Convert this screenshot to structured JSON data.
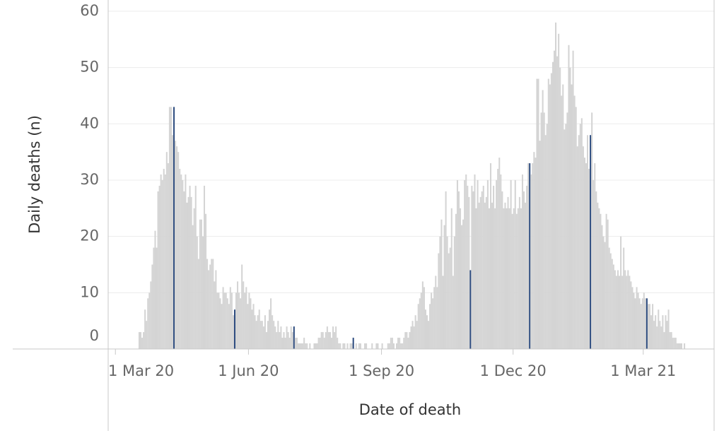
{
  "chart_data": {
    "type": "bar",
    "x_label": "Date of death",
    "y_label": "Daily deaths (n)",
    "color": "#d4d4d4",
    "highlight_color": "#2b4a7e",
    "grid": true,
    "ylim": [
      0,
      62
    ],
    "yticks": [
      0,
      10,
      20,
      30,
      40,
      50,
      60
    ],
    "xlim": [
      "2020-02-25",
      "2021-04-19"
    ],
    "xticks": [
      {
        "value": "2020-03-01",
        "label": "1 Mar 20"
      },
      {
        "value": "2020-06-01",
        "label": "1 Jun 20"
      },
      {
        "value": "2020-09-01",
        "label": "1 Sep 20"
      },
      {
        "value": "2020-12-01",
        "label": "1 Dec 20"
      },
      {
        "value": "2021-03-01",
        "label": "1 Mar 21"
      }
    ],
    "highlight_dates": [
      "2020-04-10",
      "2020-05-22",
      "2020-07-02",
      "2020-08-12",
      "2020-11-01",
      "2020-12-12",
      "2021-01-23",
      "2021-03-03"
    ],
    "x": [
      "2020-03-17",
      "2020-03-18",
      "2020-03-19",
      "2020-03-20",
      "2020-03-21",
      "2020-03-22",
      "2020-03-23",
      "2020-03-24",
      "2020-03-25",
      "2020-03-26",
      "2020-03-27",
      "2020-03-28",
      "2020-03-29",
      "2020-03-30",
      "2020-03-31",
      "2020-04-01",
      "2020-04-02",
      "2020-04-03",
      "2020-04-04",
      "2020-04-05",
      "2020-04-06",
      "2020-04-07",
      "2020-04-08",
      "2020-04-09",
      "2020-04-10",
      "2020-04-11",
      "2020-04-12",
      "2020-04-13",
      "2020-04-14",
      "2020-04-15",
      "2020-04-16",
      "2020-04-17",
      "2020-04-18",
      "2020-04-19",
      "2020-04-20",
      "2020-04-21",
      "2020-04-22",
      "2020-04-23",
      "2020-04-24",
      "2020-04-25",
      "2020-04-26",
      "2020-04-27",
      "2020-04-28",
      "2020-04-29",
      "2020-04-30",
      "2020-05-01",
      "2020-05-02",
      "2020-05-03",
      "2020-05-04",
      "2020-05-05",
      "2020-05-06",
      "2020-05-07",
      "2020-05-08",
      "2020-05-09",
      "2020-05-10",
      "2020-05-11",
      "2020-05-12",
      "2020-05-13",
      "2020-05-14",
      "2020-05-15",
      "2020-05-16",
      "2020-05-17",
      "2020-05-18",
      "2020-05-19",
      "2020-05-20",
      "2020-05-21",
      "2020-05-22",
      "2020-05-23",
      "2020-05-24",
      "2020-05-25",
      "2020-05-26",
      "2020-05-27",
      "2020-05-28",
      "2020-05-29",
      "2020-05-30",
      "2020-05-31",
      "2020-06-01",
      "2020-06-02",
      "2020-06-03",
      "2020-06-04",
      "2020-06-05",
      "2020-06-06",
      "2020-06-07",
      "2020-06-08",
      "2020-06-09",
      "2020-06-10",
      "2020-06-11",
      "2020-06-12",
      "2020-06-13",
      "2020-06-14",
      "2020-06-15",
      "2020-06-16",
      "2020-06-17",
      "2020-06-18",
      "2020-06-19",
      "2020-06-20",
      "2020-06-21",
      "2020-06-22",
      "2020-06-23",
      "2020-06-24",
      "2020-06-25",
      "2020-06-26",
      "2020-06-27",
      "2020-06-28",
      "2020-06-29",
      "2020-06-30",
      "2020-07-01",
      "2020-07-02",
      "2020-07-03",
      "2020-07-04",
      "2020-07-05",
      "2020-07-06",
      "2020-07-07",
      "2020-07-08",
      "2020-07-09",
      "2020-07-10",
      "2020-07-11",
      "2020-07-12",
      "2020-07-13",
      "2020-07-14",
      "2020-07-15",
      "2020-07-16",
      "2020-07-17",
      "2020-07-18",
      "2020-07-19",
      "2020-07-20",
      "2020-07-21",
      "2020-07-22",
      "2020-07-23",
      "2020-07-24",
      "2020-07-25",
      "2020-07-26",
      "2020-07-27",
      "2020-07-28",
      "2020-07-29",
      "2020-07-30",
      "2020-07-31",
      "2020-08-01",
      "2020-08-02",
      "2020-08-03",
      "2020-08-04",
      "2020-08-05",
      "2020-08-06",
      "2020-08-07",
      "2020-08-08",
      "2020-08-09",
      "2020-08-10",
      "2020-08-11",
      "2020-08-12",
      "2020-08-13",
      "2020-08-14",
      "2020-08-15",
      "2020-08-16",
      "2020-08-17",
      "2020-08-18",
      "2020-08-19",
      "2020-08-20",
      "2020-08-21",
      "2020-08-22",
      "2020-08-23",
      "2020-08-24",
      "2020-08-25",
      "2020-08-26",
      "2020-08-27",
      "2020-08-28",
      "2020-08-29",
      "2020-08-30",
      "2020-08-31",
      "2020-09-01",
      "2020-09-02",
      "2020-09-03",
      "2020-09-04",
      "2020-09-05",
      "2020-09-06",
      "2020-09-07",
      "2020-09-08",
      "2020-09-09",
      "2020-09-10",
      "2020-09-11",
      "2020-09-12",
      "2020-09-13",
      "2020-09-14",
      "2020-09-15",
      "2020-09-16",
      "2020-09-17",
      "2020-09-18",
      "2020-09-19",
      "2020-09-20",
      "2020-09-21",
      "2020-09-22",
      "2020-09-23",
      "2020-09-24",
      "2020-09-25",
      "2020-09-26",
      "2020-09-27",
      "2020-09-28",
      "2020-09-29",
      "2020-09-30",
      "2020-10-01",
      "2020-10-02",
      "2020-10-03",
      "2020-10-04",
      "2020-10-05",
      "2020-10-06",
      "2020-10-07",
      "2020-10-08",
      "2020-10-09",
      "2020-10-10",
      "2020-10-11",
      "2020-10-12",
      "2020-10-13",
      "2020-10-14",
      "2020-10-15",
      "2020-10-16",
      "2020-10-17",
      "2020-10-18",
      "2020-10-19",
      "2020-10-20",
      "2020-10-21",
      "2020-10-22",
      "2020-10-23",
      "2020-10-24",
      "2020-10-25",
      "2020-10-26",
      "2020-10-27",
      "2020-10-28",
      "2020-10-29",
      "2020-10-30",
      "2020-10-31",
      "2020-11-01",
      "2020-11-02",
      "2020-11-03",
      "2020-11-04",
      "2020-11-05",
      "2020-11-06",
      "2020-11-07",
      "2020-11-08",
      "2020-11-09",
      "2020-11-10",
      "2020-11-11",
      "2020-11-12",
      "2020-11-13",
      "2020-11-14",
      "2020-11-15",
      "2020-11-16",
      "2020-11-17",
      "2020-11-18",
      "2020-11-19",
      "2020-11-20",
      "2020-11-21",
      "2020-11-22",
      "2020-11-23",
      "2020-11-24",
      "2020-11-25",
      "2020-11-26",
      "2020-11-27",
      "2020-11-28",
      "2020-11-29",
      "2020-11-30",
      "2020-12-01",
      "2020-12-02",
      "2020-12-03",
      "2020-12-04",
      "2020-12-05",
      "2020-12-06",
      "2020-12-07",
      "2020-12-08",
      "2020-12-09",
      "2020-12-10",
      "2020-12-11",
      "2020-12-12",
      "2020-12-13",
      "2020-12-14",
      "2020-12-15",
      "2020-12-16",
      "2020-12-17",
      "2020-12-18",
      "2020-12-19",
      "2020-12-20",
      "2020-12-21",
      "2020-12-22",
      "2020-12-23",
      "2020-12-24",
      "2020-12-25",
      "2020-12-26",
      "2020-12-27",
      "2020-12-28",
      "2020-12-29",
      "2020-12-30",
      "2020-12-31",
      "2021-01-01",
      "2021-01-02",
      "2021-01-03",
      "2021-01-04",
      "2021-01-05",
      "2021-01-06",
      "2021-01-07",
      "2021-01-08",
      "2021-01-09",
      "2021-01-10",
      "2021-01-11",
      "2021-01-12",
      "2021-01-13",
      "2021-01-14",
      "2021-01-15",
      "2021-01-16",
      "2021-01-17",
      "2021-01-18",
      "2021-01-19",
      "2021-01-20",
      "2021-01-21",
      "2021-01-22",
      "2021-01-23",
      "2021-01-24",
      "2021-01-25",
      "2021-01-26",
      "2021-01-27",
      "2021-01-28",
      "2021-01-29",
      "2021-01-30",
      "2021-01-31",
      "2021-02-01",
      "2021-02-02",
      "2021-02-03",
      "2021-02-04",
      "2021-02-05",
      "2021-02-06",
      "2021-02-07",
      "2021-02-08",
      "2021-02-09",
      "2021-02-10",
      "2021-02-11",
      "2021-02-12",
      "2021-02-13",
      "2021-02-14",
      "2021-02-15",
      "2021-02-16",
      "2021-02-17",
      "2021-02-18",
      "2021-02-19",
      "2021-02-20",
      "2021-02-21",
      "2021-02-22",
      "2021-02-23",
      "2021-02-24",
      "2021-02-25",
      "2021-02-26",
      "2021-02-27",
      "2021-02-28",
      "2021-03-01",
      "2021-03-02",
      "2021-03-03",
      "2021-03-04",
      "2021-03-05",
      "2021-03-06",
      "2021-03-07",
      "2021-03-08",
      "2021-03-09",
      "2021-03-10",
      "2021-03-11",
      "2021-03-12",
      "2021-03-13",
      "2021-03-14",
      "2021-03-15",
      "2021-03-16",
      "2021-03-17",
      "2021-03-18",
      "2021-03-19",
      "2021-03-20",
      "2021-03-21",
      "2021-03-22",
      "2021-03-23",
      "2021-03-24",
      "2021-03-25",
      "2021-03-26",
      "2021-03-27",
      "2021-03-28",
      "2021-03-29"
    ],
    "values": [
      3,
      3,
      2,
      3,
      7,
      5,
      9,
      10,
      12,
      15,
      18,
      21,
      18,
      28,
      29,
      31,
      30,
      32,
      31,
      35,
      33,
      43,
      43,
      38,
      43,
      37,
      36,
      35,
      32,
      31,
      30,
      28,
      31,
      26,
      27,
      29,
      27,
      22,
      25,
      29,
      20,
      16,
      23,
      23,
      20,
      29,
      24,
      16,
      14,
      15,
      16,
      16,
      12,
      14,
      10,
      10,
      9,
      8,
      11,
      10,
      10,
      9,
      8,
      11,
      10,
      6,
      7,
      10,
      12,
      10,
      9,
      15,
      12,
      10,
      11,
      8,
      10,
      9,
      7,
      8,
      6,
      5,
      6,
      7,
      5,
      5,
      4,
      6,
      3,
      5,
      7,
      9,
      6,
      5,
      4,
      3,
      5,
      3,
      4,
      2,
      3,
      2,
      4,
      3,
      2,
      4,
      3,
      4,
      2,
      2,
      1,
      1,
      1,
      1,
      2,
      1,
      1,
      0,
      1,
      0,
      0,
      1,
      1,
      1,
      2,
      2,
      3,
      3,
      2,
      3,
      4,
      3,
      3,
      2,
      4,
      3,
      4,
      2,
      1,
      1,
      0,
      1,
      1,
      0,
      1,
      0,
      1,
      1,
      2,
      0,
      1,
      0,
      1,
      1,
      0,
      0,
      1,
      1,
      0,
      0,
      0,
      1,
      0,
      0,
      1,
      1,
      0,
      0,
      1,
      0,
      0,
      0,
      1,
      1,
      2,
      2,
      1,
      0,
      1,
      2,
      2,
      1,
      1,
      2,
      3,
      3,
      2,
      3,
      4,
      5,
      4,
      6,
      5,
      8,
      9,
      10,
      12,
      11,
      7,
      6,
      5,
      8,
      10,
      9,
      11,
      13,
      11,
      17,
      20,
      23,
      13,
      22,
      28,
      20,
      17,
      18,
      25,
      13,
      20,
      24,
      30,
      28,
      25,
      22,
      23,
      30,
      31,
      29,
      27,
      14,
      29,
      28,
      31,
      25,
      30,
      26,
      27,
      28,
      29,
      26,
      27,
      30,
      25,
      33,
      26,
      29,
      25,
      30,
      32,
      34,
      31,
      28,
      25,
      26,
      25,
      27,
      25,
      30,
      24,
      25,
      30,
      24,
      25,
      27,
      25,
      31,
      28,
      26,
      29,
      33,
      33,
      31,
      33,
      35,
      34,
      48,
      48,
      37,
      42,
      46,
      42,
      38,
      40,
      48,
      47,
      49,
      51,
      53,
      58,
      52,
      56,
      50,
      45,
      47,
      39,
      40,
      42,
      54,
      50,
      47,
      53,
      45,
      43,
      36,
      38,
      40,
      41,
      36,
      34,
      33,
      38,
      32,
      38,
      42,
      30,
      33,
      28,
      26,
      25,
      24,
      22,
      20,
      19,
      24,
      23,
      18,
      17,
      16,
      15,
      14,
      13,
      14,
      13,
      20,
      13,
      18,
      14,
      13,
      14,
      13,
      12,
      11,
      10,
      9,
      11,
      10,
      9,
      8,
      9,
      10,
      9,
      9,
      8,
      8,
      6,
      8,
      5,
      6,
      4,
      7,
      5,
      4,
      6,
      3,
      6,
      5,
      7,
      3,
      3,
      2,
      2,
      2,
      1,
      1,
      1,
      1,
      0,
      1
    ]
  }
}
